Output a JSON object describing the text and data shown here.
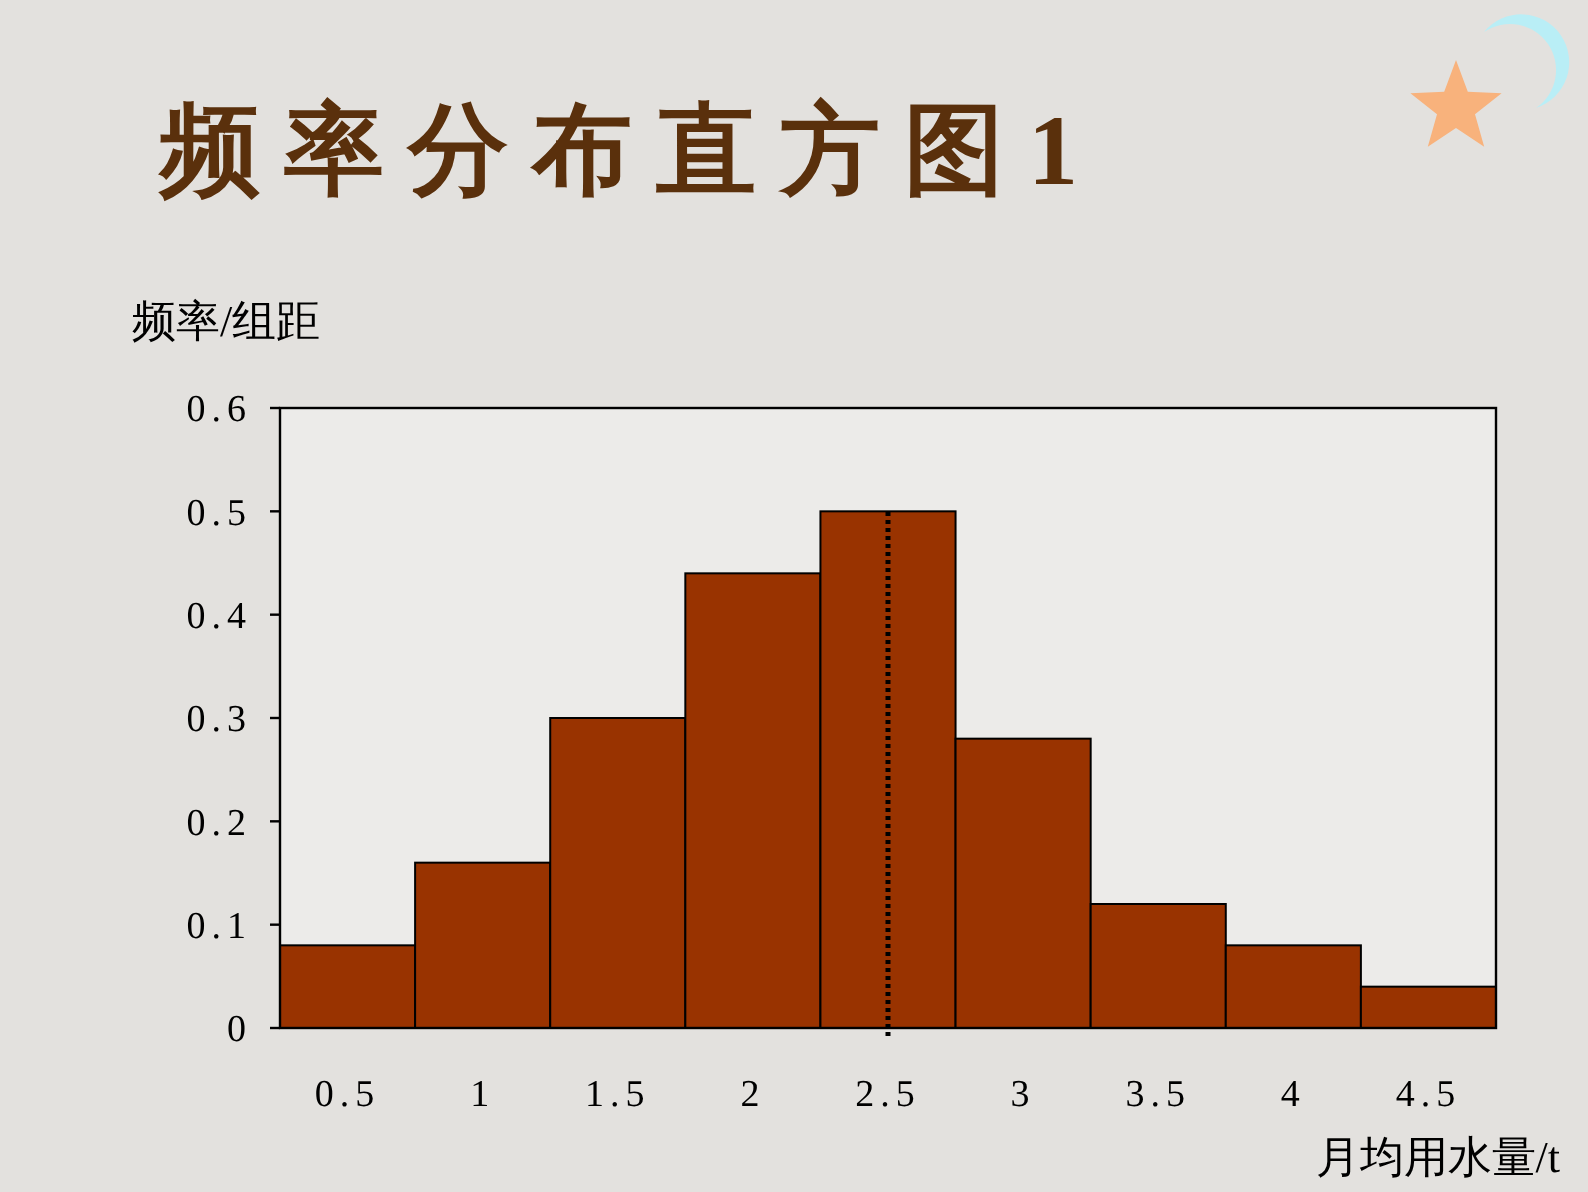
{
  "chart_data": {
    "type": "bar",
    "title": "频率分布直方图1",
    "ylabel": "频率/组距",
    "xlabel": "月均用水量/t",
    "categories": [
      "0.5",
      "1",
      "1.5",
      "2",
      "2.5",
      "3",
      "3.5",
      "4",
      "4.5"
    ],
    "values": [
      0.08,
      0.16,
      0.3,
      0.44,
      0.5,
      0.28,
      0.12,
      0.08,
      0.04
    ],
    "color": "#993300",
    "ylim": [
      0,
      0.6
    ],
    "yticks": [
      0,
      0.1,
      0.2,
      0.3,
      0.4,
      0.5,
      0.6
    ],
    "ref_lines": [
      {
        "axis": "x",
        "value": "2.5",
        "color": "#000000",
        "line_style": "dotted"
      }
    ]
  }
}
